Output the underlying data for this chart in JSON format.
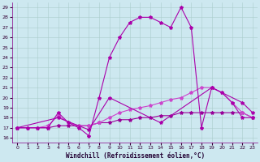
{
  "xlabel": "Windchill (Refroidissement éolien,°C)",
  "xlim": [
    -0.5,
    23.5
  ],
  "ylim": [
    15.5,
    29.5
  ],
  "yticks": [
    16,
    17,
    18,
    19,
    20,
    21,
    22,
    23,
    24,
    25,
    26,
    27,
    28,
    29
  ],
  "xticks": [
    0,
    1,
    2,
    3,
    4,
    5,
    6,
    7,
    8,
    9,
    10,
    11,
    12,
    13,
    14,
    15,
    16,
    17,
    18,
    19,
    20,
    21,
    22,
    23
  ],
  "bg_color": "#cde8f0",
  "grid_color": "#aacccc",
  "line1_color": "#aa00aa",
  "line2_color": "#cc44cc",
  "line3_color": "#990099",
  "line4_color": "#cc44cc",
  "line1_x": [
    0,
    1,
    2,
    3,
    4,
    5,
    6,
    7,
    8,
    9,
    10,
    11,
    12,
    13,
    14,
    15,
    16,
    17,
    18,
    19,
    20,
    21,
    22,
    23
  ],
  "line1_y": [
    17,
    17,
    17,
    17,
    18.5,
    17.5,
    17,
    16.2,
    20,
    24,
    26,
    27.5,
    28,
    28,
    27.5,
    27,
    29,
    27,
    17,
    21,
    20.5,
    19.5,
    18,
    18
  ],
  "line2_x": [
    0,
    1,
    2,
    3,
    4,
    5,
    6,
    7,
    8,
    9,
    10,
    11,
    12,
    13,
    14,
    15,
    16,
    17,
    18,
    19,
    20,
    21,
    22,
    23
  ],
  "line2_y": [
    17,
    17,
    17,
    17.2,
    18.2,
    17.5,
    17.2,
    17.2,
    17.5,
    18,
    18.5,
    18.8,
    19,
    19.2,
    19.5,
    19.8,
    20,
    20.5,
    21,
    21,
    20.5,
    19.5,
    18.5,
    18
  ],
  "line3_x": [
    0,
    1,
    2,
    3,
    4,
    5,
    6,
    7,
    8,
    9,
    10,
    11,
    12,
    13,
    14,
    15,
    16,
    17,
    18,
    19,
    20,
    21,
    22,
    23
  ],
  "line3_y": [
    17,
    17,
    17,
    17,
    17.2,
    17.2,
    17.2,
    17.2,
    17.5,
    17.5,
    17.8,
    17.8,
    18,
    18,
    18.2,
    18.2,
    18.5,
    18.5,
    18.5,
    18.5,
    18.5,
    18.5,
    18.5,
    18
  ],
  "line4_x": [
    0,
    4,
    7,
    9,
    14,
    19,
    22,
    23
  ],
  "line4_y": [
    17,
    18,
    16.8,
    20,
    17.5,
    21,
    19.5,
    18.5
  ],
  "marker": "*",
  "marker_size": 3,
  "lw": 0.8
}
